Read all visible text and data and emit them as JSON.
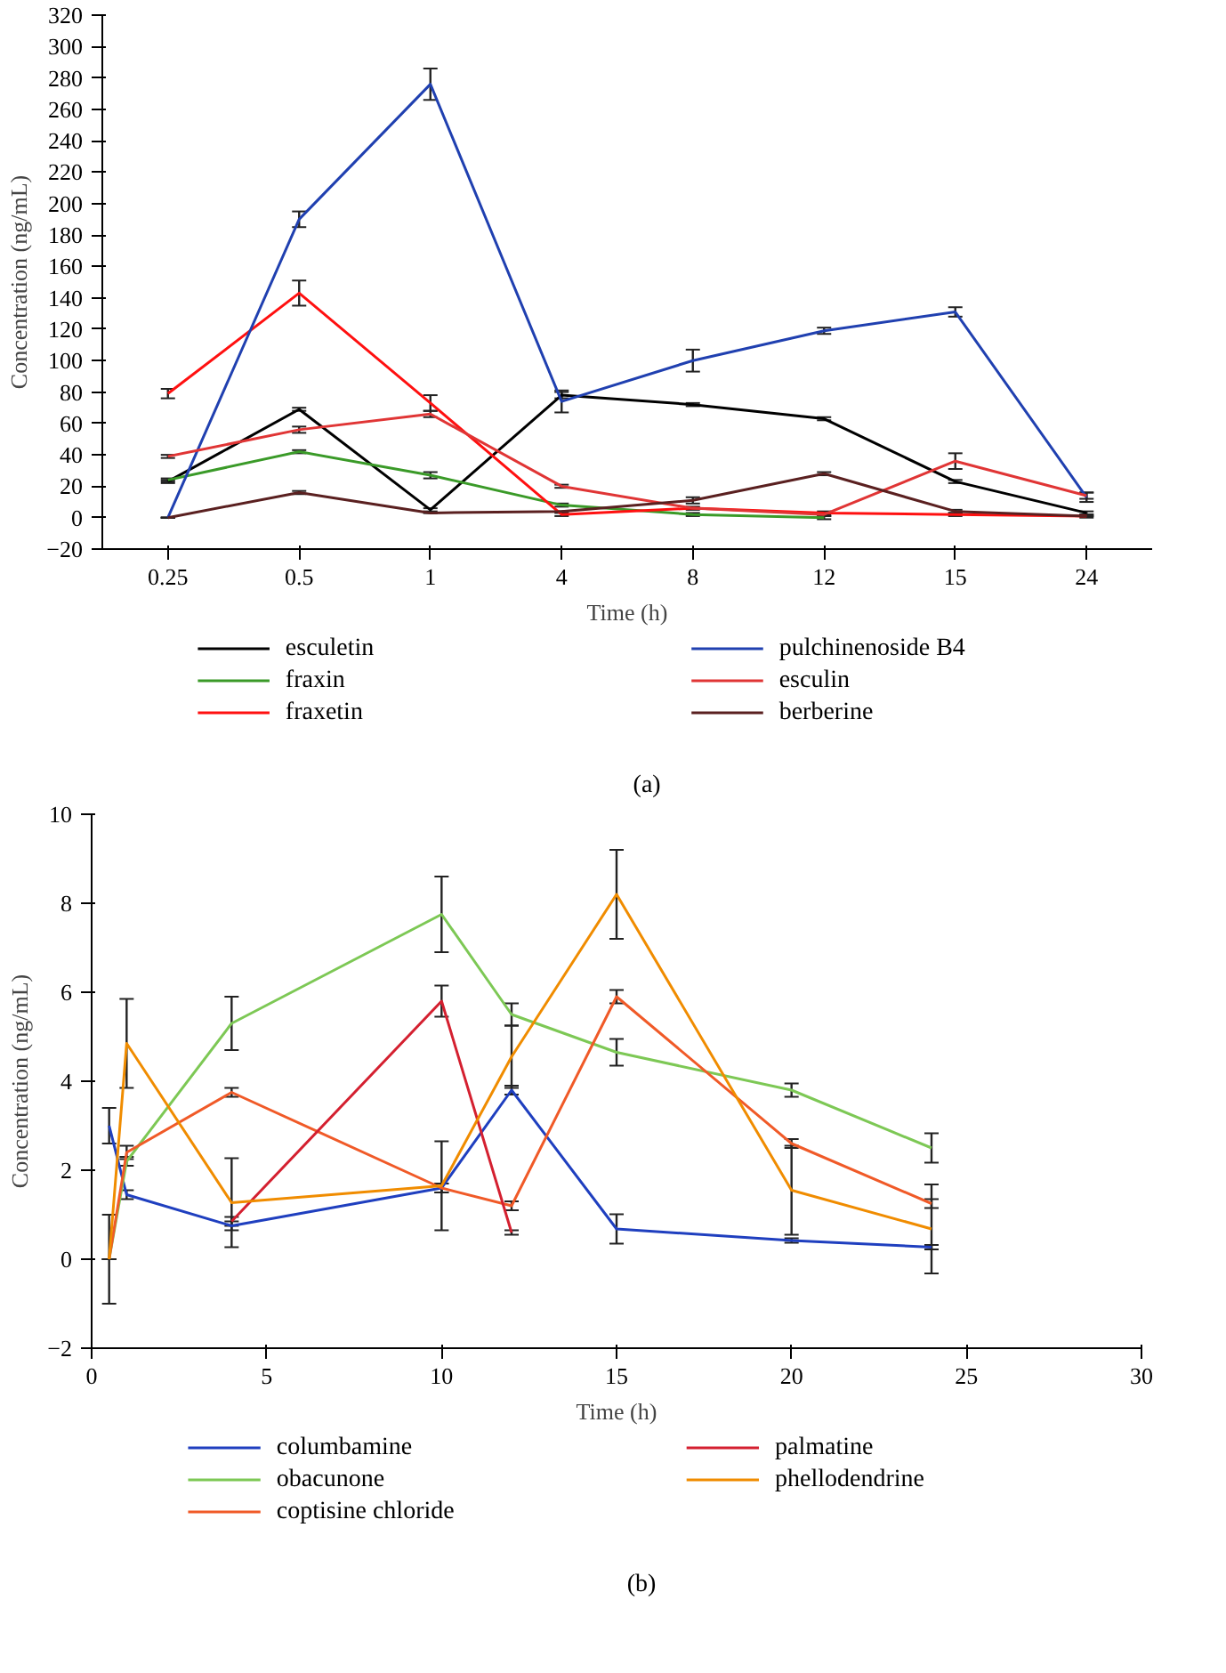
{
  "chart_data": [
    {
      "type": "line",
      "categories": [
        "0.25",
        "0.5",
        "1",
        "4",
        "8",
        "12",
        "15",
        "24"
      ],
      "xlabel": "Time (h)",
      "ylabel": "Concentration (ng/mL)",
      "ylim": [
        -20,
        320
      ],
      "yticks": [
        -20,
        0,
        20,
        40,
        60,
        80,
        100,
        120,
        140,
        160,
        180,
        200,
        220,
        240,
        260,
        280,
        300,
        320
      ],
      "grid": false,
      "legend": "bottom",
      "marker": "none",
      "line_style": "solid",
      "annotations": [
        "(a)"
      ],
      "series": [
        {
          "name": "esculetin",
          "color": "#000000",
          "values": [
            23,
            69,
            5,
            78,
            72,
            63,
            23,
            3
          ],
          "errors": [
            1,
            1,
            1,
            2,
            1,
            1,
            1,
            1
          ]
        },
        {
          "name": "fraxin",
          "color": "#3a9a28",
          "values": [
            24,
            42,
            27,
            8,
            2,
            0,
            null,
            null
          ],
          "errors": [
            1,
            1,
            2,
            1,
            1,
            1,
            null,
            null
          ]
        },
        {
          "name": "fraxetin",
          "color": "#ff1010",
          "values": [
            79,
            143,
            73,
            2,
            6,
            3,
            2,
            1
          ],
          "errors": [
            3,
            8,
            5,
            1,
            null,
            1,
            1,
            1
          ]
        },
        {
          "name": "pulchinenoside B4",
          "color": "#2040b0",
          "values": [
            0,
            190,
            276,
            74,
            100,
            119,
            131,
            13
          ],
          "errors": [
            0,
            5,
            10,
            7,
            7,
            2,
            3,
            3
          ]
        },
        {
          "name": "esculin",
          "color": "#e03535",
          "values": [
            39,
            56,
            66,
            20,
            6,
            2,
            36,
            14
          ],
          "errors": [
            1,
            2,
            2,
            1,
            1,
            1,
            5,
            2
          ]
        },
        {
          "name": "berberine",
          "color": "#5a2020",
          "values": [
            0,
            16,
            3,
            4,
            11,
            28,
            4,
            1
          ],
          "errors": [
            0,
            1,
            0,
            0,
            2,
            1,
            1,
            0
          ]
        }
      ]
    },
    {
      "type": "line",
      "xlabel": "Time (h)",
      "ylabel": "Concentration (ng/mL)",
      "xlim": [
        0,
        30
      ],
      "xticks": [
        0,
        5,
        10,
        15,
        20,
        25,
        30
      ],
      "ylim": [
        -2,
        10
      ],
      "yticks": [
        -2,
        0,
        2,
        4,
        6,
        8,
        10
      ],
      "grid": false,
      "legend": "bottom",
      "marker": "none",
      "line_style": "solid",
      "annotations": [
        "(b)"
      ],
      "series": [
        {
          "name": "columbamine",
          "color": "#1f3fbf",
          "x": [
            0.5,
            1,
            4,
            10,
            12,
            15,
            20,
            24
          ],
          "values": [
            3.0,
            1.45,
            0.75,
            1.6,
            3.8,
            0.68,
            0.42,
            0.27
          ],
          "errors": [
            0.4,
            0.1,
            0.1,
            0.1,
            0.1,
            0.33,
            0.05,
            0.05
          ]
        },
        {
          "name": "obacunone",
          "color": "#7dc855",
          "x": [
            0.5,
            1,
            4,
            10,
            12,
            15,
            20,
            24
          ],
          "values": [
            0,
            2.2,
            5.3,
            7.75,
            5.5,
            4.65,
            3.8,
            2.5
          ],
          "errors": [
            0,
            0.1,
            0.6,
            0.85,
            0.25,
            0.3,
            0.15,
            0.33
          ]
        },
        {
          "name": "coptisine chloride",
          "color": "#f05a28",
          "x": [
            0.5,
            1,
            4,
            10,
            12,
            15,
            20,
            24
          ],
          "values": [
            0,
            2.4,
            3.75,
            1.6,
            1.2,
            5.9,
            2.6,
            1.25
          ],
          "errors": [
            0,
            0.15,
            0.1,
            0.1,
            0.1,
            0.15,
            0.1,
            0.1
          ]
        },
        {
          "name": "palmatine",
          "color": "#d42030",
          "x": [
            4,
            10,
            12
          ],
          "values": [
            0.85,
            5.8,
            0.6
          ],
          "errors": [
            0.1,
            0.35,
            0.05
          ]
        },
        {
          "name": "phellodendrine",
          "color": "#f08c00",
          "x": [
            0.5,
            1,
            4,
            10,
            12,
            15,
            20,
            24
          ],
          "values": [
            0,
            4.85,
            1.27,
            1.65,
            4.55,
            8.2,
            1.55,
            0.68
          ],
          "errors": [
            1.0,
            1.0,
            1.0,
            1.0,
            0.7,
            1.0,
            1.0,
            1.0
          ]
        }
      ]
    }
  ]
}
